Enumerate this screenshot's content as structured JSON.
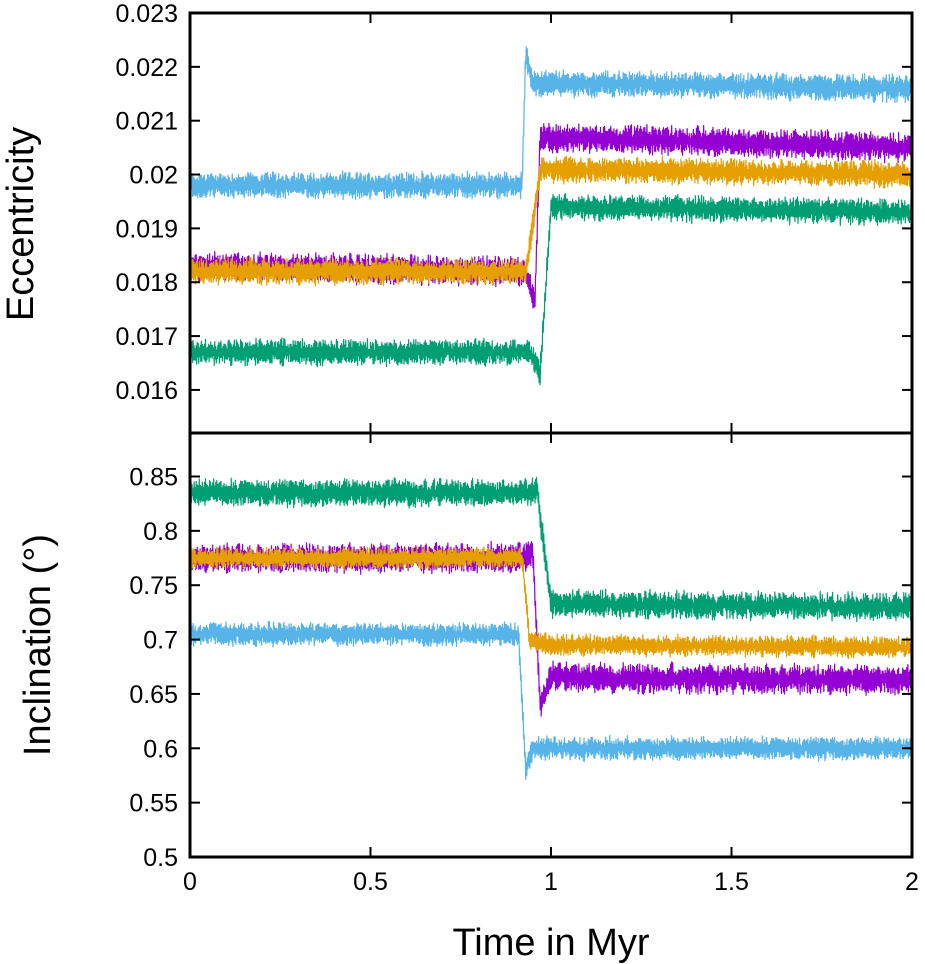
{
  "chart_data": [
    {
      "type": "line",
      "ylabel": "Eccentricity",
      "xlim": [
        0,
        2
      ],
      "ylim": [
        0.0152,
        0.023
      ],
      "yticks": [
        0.016,
        0.017,
        0.018,
        0.019,
        0.02,
        0.021,
        0.022,
        0.023
      ],
      "ytick_labels": [
        "0.016",
        "0.017",
        "0.018",
        "0.019",
        "0.02",
        "0.021",
        "0.022",
        "0.023"
      ],
      "grid": false,
      "series": [
        {
          "color": "#56b4e9",
          "x": [
            0,
            0.92,
            0.93,
            0.95,
            2
          ],
          "y": [
            0.0198,
            0.0198,
            0.0222,
            0.0217,
            0.0216
          ],
          "noise": 0.00025
        },
        {
          "color": "#9400d3",
          "x": [
            0,
            0.93,
            0.955,
            0.97,
            2
          ],
          "y": [
            0.0183,
            0.0182,
            0.0176,
            0.0207,
            0.0205
          ],
          "noise": 0.00028
        },
        {
          "color": "#e69f00",
          "x": [
            0,
            0.93,
            0.94,
            0.97,
            2
          ],
          "y": [
            0.0182,
            0.0182,
            0.0186,
            0.0201,
            0.02
          ],
          "noise": 0.00025
        },
        {
          "color": "#009e73",
          "x": [
            0,
            0.94,
            0.97,
            1.0,
            2
          ],
          "y": [
            0.0167,
            0.0167,
            0.0163,
            0.0194,
            0.0193
          ],
          "noise": 0.00025
        }
      ]
    },
    {
      "type": "line",
      "xlabel": "Time in Myr",
      "ylabel": "Inclination (°)",
      "xlim": [
        0,
        2
      ],
      "ylim": [
        0.5,
        0.89
      ],
      "xticks": [
        0,
        0.5,
        1,
        1.5,
        2
      ],
      "xtick_labels": [
        "0",
        "0.5",
        "1",
        "1.5",
        "2"
      ],
      "yticks": [
        0.5,
        0.55,
        0.6,
        0.65,
        0.7,
        0.75,
        0.8,
        0.85
      ],
      "ytick_labels": [
        "0.5",
        "0.55",
        "0.6",
        "0.65",
        "0.7",
        "0.75",
        "0.8",
        "0.85"
      ],
      "grid": false,
      "series": [
        {
          "color": "#009e73",
          "x": [
            0,
            0.94,
            0.96,
            1.0,
            2
          ],
          "y": [
            0.835,
            0.835,
            0.84,
            0.733,
            0.73
          ],
          "noise": 0.013
        },
        {
          "color": "#9400d3",
          "x": [
            0,
            0.93,
            0.95,
            0.97,
            1.0,
            2
          ],
          "y": [
            0.775,
            0.775,
            0.78,
            0.64,
            0.665,
            0.663
          ],
          "noise": 0.014
        },
        {
          "color": "#e69f00",
          "x": [
            0,
            0.92,
            0.94,
            1.0,
            2
          ],
          "y": [
            0.775,
            0.775,
            0.7,
            0.695,
            0.693
          ],
          "noise": 0.01
        },
        {
          "color": "#56b4e9",
          "x": [
            0,
            0.91,
            0.93,
            0.95,
            2
          ],
          "y": [
            0.705,
            0.705,
            0.58,
            0.6,
            0.6
          ],
          "noise": 0.011
        }
      ]
    }
  ]
}
